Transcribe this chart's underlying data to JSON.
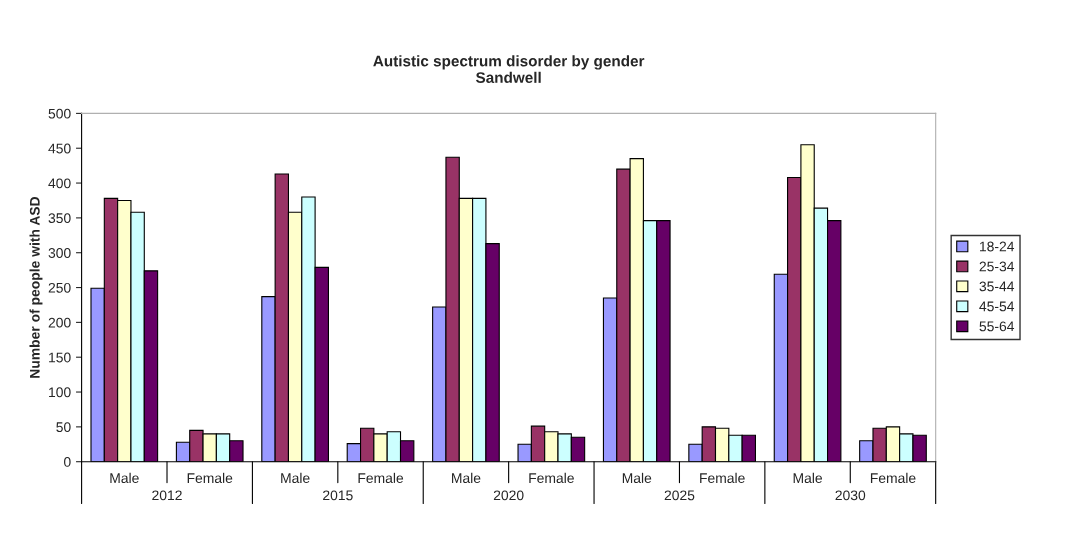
{
  "chart_data": {
    "type": "bar",
    "title": "Autistic spectrum disorder by gender\nSandwell",
    "ylabel": "Number of people with ASD",
    "categories": [
      "Male",
      "Female",
      "Male",
      "Female",
      "Male",
      "Female",
      "Male",
      "Female",
      "Male",
      "Female"
    ],
    "annotations": [
      "2012",
      "2015",
      "2020",
      "2025",
      "2030"
    ],
    "series": [
      {
        "name": "18-24",
        "color": "#9999ff",
        "values": [
          249,
          28,
          237,
          26,
          222,
          25,
          235,
          25,
          269,
          30
        ]
      },
      {
        "name": "25-34",
        "color": "#993366",
        "values": [
          378,
          45,
          413,
          48,
          437,
          51,
          420,
          50,
          408,
          48
        ]
      },
      {
        "name": "35-44",
        "color": "#ffffcc",
        "values": [
          375,
          40,
          358,
          40,
          378,
          43,
          435,
          48,
          455,
          50
        ]
      },
      {
        "name": "45-54",
        "color": "#ccffff",
        "values": [
          358,
          40,
          380,
          43,
          378,
          40,
          346,
          38,
          364,
          40
        ]
      },
      {
        "name": "55-64",
        "color": "#660066",
        "values": [
          274,
          30,
          279,
          30,
          313,
          35,
          346,
          38,
          346,
          38
        ]
      }
    ],
    "ylim": [
      0,
      500
    ],
    "yticks": [
      0,
      50,
      100,
      150,
      200,
      250,
      300,
      350,
      400,
      450,
      500
    ],
    "grid": false,
    "legend": "right"
  }
}
